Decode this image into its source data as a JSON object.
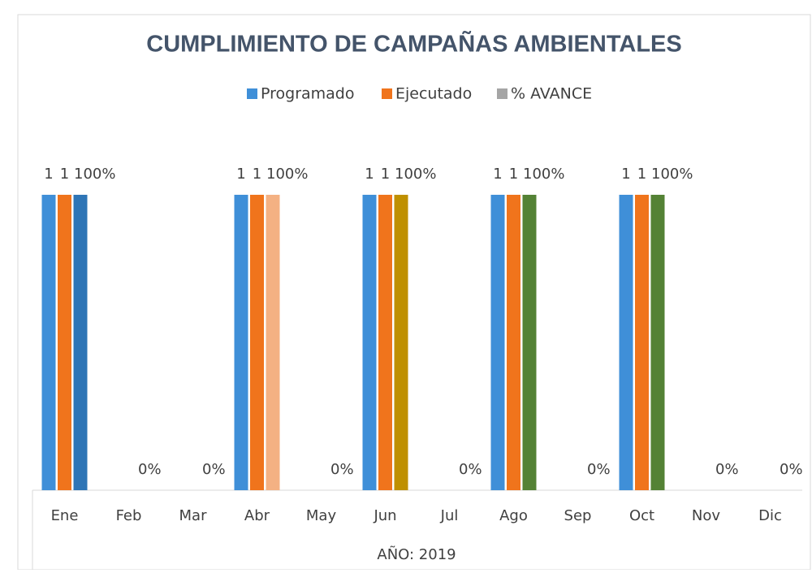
{
  "chart_data": {
    "type": "bar",
    "title": "CUMPLIMIENTO DE CAMPAÑAS AMBIENTALES",
    "x_label": "AÑO: 2019",
    "categories": [
      "Ene",
      "Feb",
      "Mar",
      "Abr",
      "May",
      "Jun",
      "Jul",
      "Ago",
      "Sep",
      "Oct",
      "Nov",
      "Dic"
    ],
    "series": [
      {
        "name": "Programado",
        "color": "#3f8fd8",
        "values": [
          1,
          null,
          null,
          1,
          null,
          1,
          null,
          1,
          null,
          1,
          null,
          null
        ]
      },
      {
        "name": "Ejecutado",
        "color": "#f0741c",
        "values": [
          1,
          null,
          null,
          1,
          null,
          1,
          null,
          1,
          null,
          1,
          null,
          null
        ]
      },
      {
        "name": "% AVANCE",
        "color": "#a5a5a5",
        "values": [
          1,
          0,
          0,
          1,
          0,
          1,
          0,
          1,
          0,
          1,
          0,
          0
        ],
        "value_labels": [
          "100%",
          "0%",
          "0%",
          "100%",
          "0%",
          "100%",
          "0%",
          "100%",
          "0%",
          "100%",
          "0%",
          "0%"
        ],
        "point_colors": [
          "#2e75b6",
          "#a5a5a5",
          "#a5a5a5",
          "#f4b183",
          "#a5a5a5",
          "#bf9000",
          "#a5a5a5",
          "#548235",
          "#a5a5a5",
          "#548235",
          "#a5a5a5",
          "#a5a5a5"
        ]
      }
    ],
    "ylim": [
      0,
      1.2
    ],
    "grid": false,
    "legend": "top"
  }
}
